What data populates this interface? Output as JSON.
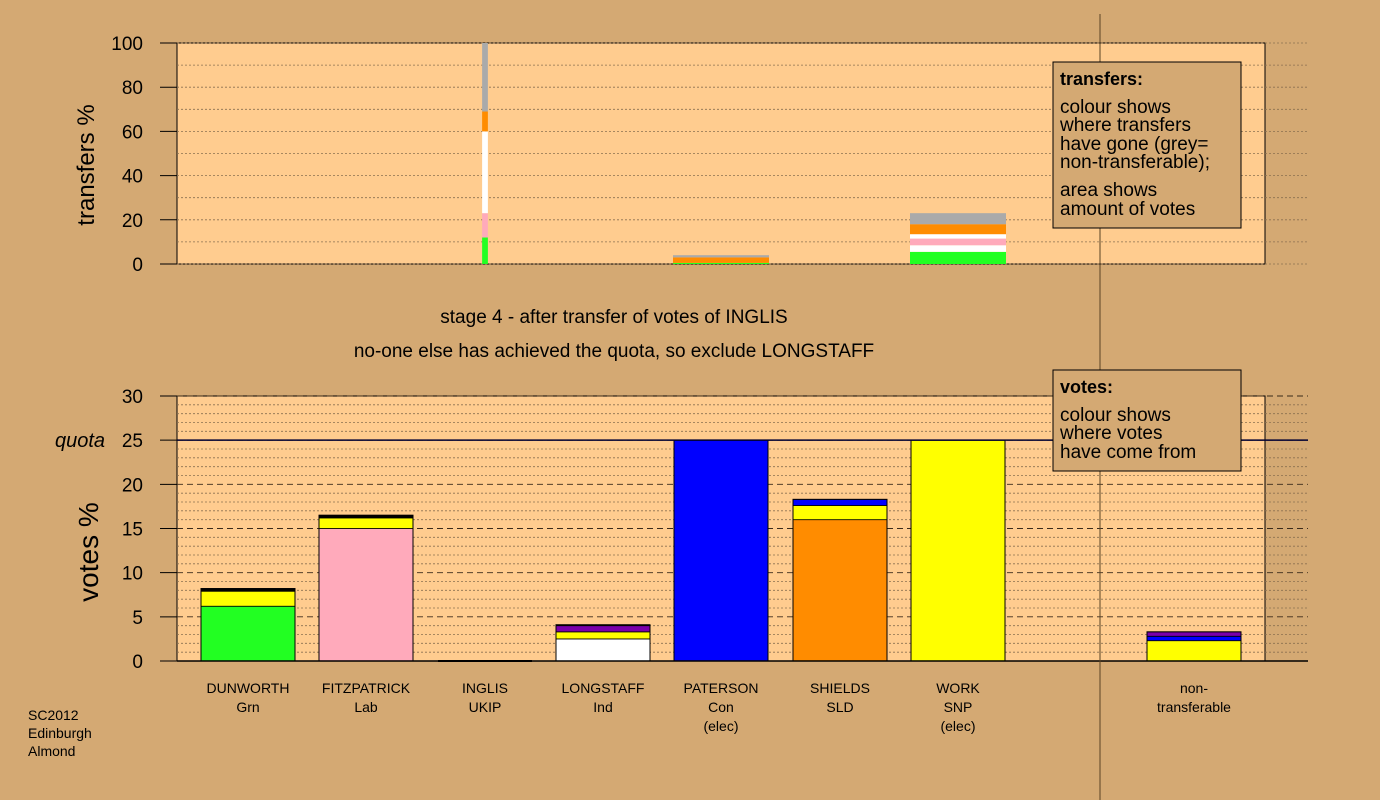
{
  "colors": {
    "background": "#d4a973",
    "plot": "#ffcc8f",
    "Grn": "#22ff22",
    "Lab": "#ffaabb",
    "UKIP": "#7a00aa",
    "Ind": "#ffffff",
    "Con": "#0000ff",
    "SLD": "#ff8c00",
    "SNP": "#ffff00",
    "nontransferable": "#aaaaaa",
    "other": "#000000"
  },
  "top": {
    "ylabel": "transfers %",
    "yticks": [
      "0",
      "20",
      "40",
      "60",
      "80",
      "100"
    ],
    "legend": {
      "title": "transfers:",
      "line1": "colour shows",
      "line2": "where transfers",
      "line3": "have gone (grey=",
      "line4": "non-transferable);",
      "line5": "area shows",
      "line6": "amount of votes"
    }
  },
  "stage": {
    "line1": "stage 4 - after transfer of votes of INGLIS",
    "line2": "no-one else has achieved the quota, so exclude LONGSTAFF"
  },
  "bottom": {
    "ylabel": "votes %",
    "quota_label": "quota",
    "yticks": [
      "0",
      "5",
      "10",
      "15",
      "20",
      "25",
      "30"
    ],
    "legend": {
      "title": "votes:",
      "line1": "colour shows",
      "line2": "where votes",
      "line3": "have come from"
    }
  },
  "candidates": [
    {
      "name": "DUNWORTH",
      "party": "Grn",
      "extra": ""
    },
    {
      "name": "FITZPATRICK",
      "party": "Lab",
      "extra": ""
    },
    {
      "name": "INGLIS",
      "party": "UKIP",
      "extra": ""
    },
    {
      "name": "LONGSTAFF",
      "party": "Ind",
      "extra": ""
    },
    {
      "name": "PATERSON",
      "party": "Con",
      "extra": "(elec)"
    },
    {
      "name": "SHIELDS",
      "party": "SLD",
      "extra": ""
    },
    {
      "name": "WORK",
      "party": "SNP",
      "extra": "(elec)"
    },
    {
      "name": "non-",
      "party": "transferable",
      "extra": ""
    }
  ],
  "footnote": {
    "line1": "SC2012",
    "line2": "Edinburgh",
    "line3": "Almond"
  },
  "chart_data": [
    {
      "type": "bar",
      "title": "",
      "ylabel": "transfers %",
      "ylim": [
        0,
        100
      ],
      "categories": [
        "INGLIS",
        "PATERSON",
        "WORK"
      ],
      "stacks": [
        {
          "category": "INGLIS",
          "segments": [
            {
              "to": "Grn",
              "value": 12
            },
            {
              "to": "Lab",
              "value": 11
            },
            {
              "to": "Ind",
              "value": 37
            },
            {
              "to": "SLD",
              "value": 9
            },
            {
              "to": "nontransferable",
              "value": 31
            }
          ]
        },
        {
          "category": "PATERSON",
          "segments": [
            {
              "to": "Grn",
              "value": 0.5
            },
            {
              "to": "SLD",
              "value": 2.5
            },
            {
              "to": "nontransferable",
              "value": 1
            }
          ]
        },
        {
          "category": "WORK",
          "segments": [
            {
              "to": "Grn",
              "value": 5.5
            },
            {
              "to": "Ind",
              "value": 3
            },
            {
              "to": "Lab",
              "value": 3
            },
            {
              "to": "Ind",
              "value": 2
            },
            {
              "to": "SLD",
              "value": 4.5
            },
            {
              "to": "nontransferable",
              "value": 5
            }
          ]
        }
      ],
      "widths": {
        "INGLIS": 0.06,
        "PATERSON": 1,
        "WORK": 1
      }
    },
    {
      "type": "bar",
      "title": "",
      "ylabel": "votes %",
      "ylim": [
        0,
        30
      ],
      "quota": 25,
      "categories": [
        "DUNWORTH Grn",
        "FITZPATRICK Lab",
        "INGLIS UKIP",
        "LONGSTAFF Ind",
        "PATERSON Con (elec)",
        "SHIELDS SLD",
        "WORK SNP (elec)",
        "non-transferable"
      ],
      "stacks": [
        {
          "category": "DUNWORTH Grn",
          "segments": [
            {
              "from": "Grn",
              "value": 6.2
            },
            {
              "from": "SNP",
              "value": 1.7
            },
            {
              "from": "other",
              "value": 0.3
            }
          ]
        },
        {
          "category": "FITZPATRICK Lab",
          "segments": [
            {
              "from": "Lab",
              "value": 15
            },
            {
              "from": "SNP",
              "value": 1.2
            },
            {
              "from": "other",
              "value": 0.3
            }
          ]
        },
        {
          "category": "INGLIS UKIP",
          "segments": []
        },
        {
          "category": "LONGSTAFF Ind",
          "segments": [
            {
              "from": "Ind",
              "value": 2.5
            },
            {
              "from": "SNP",
              "value": 0.8
            },
            {
              "from": "UKIP",
              "value": 0.7
            },
            {
              "from": "other",
              "value": 0.1
            }
          ]
        },
        {
          "category": "PATERSON Con (elec)",
          "segments": [
            {
              "from": "Con",
              "value": 25
            }
          ]
        },
        {
          "category": "SHIELDS SLD",
          "segments": [
            {
              "from": "SLD",
              "value": 16
            },
            {
              "from": "SNP",
              "value": 1.6
            },
            {
              "from": "Con",
              "value": 0.7
            }
          ]
        },
        {
          "category": "WORK SNP (elec)",
          "segments": [
            {
              "from": "SNP",
              "value": 25
            }
          ]
        },
        {
          "category": "non-transferable",
          "segments": [
            {
              "from": "SNP",
              "value": 2.3
            },
            {
              "from": "Con",
              "value": 0.5
            },
            {
              "from": "UKIP",
              "value": 0.5
            }
          ]
        }
      ]
    }
  ]
}
